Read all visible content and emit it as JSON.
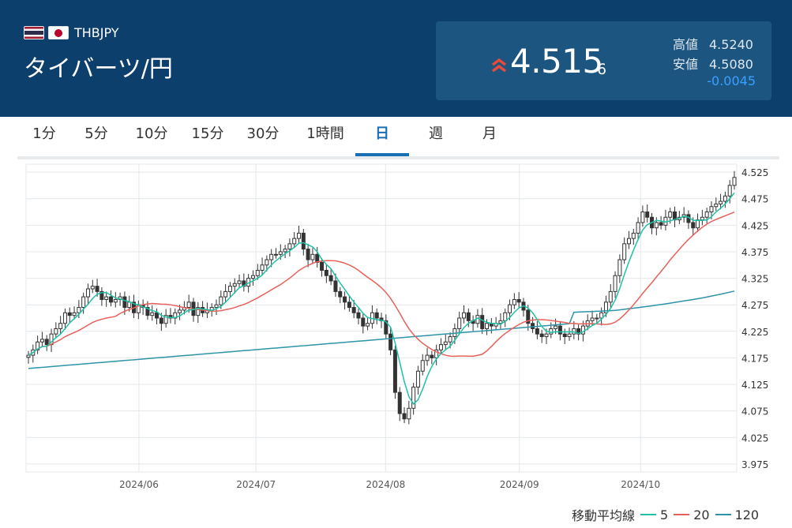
{
  "header": {
    "pair_code": "THBJPY",
    "pair_name": "タイバーツ/円",
    "price_main": "4.515",
    "price_sub": "6",
    "high_label": "高値",
    "high_value": "4.5240",
    "low_label": "安値",
    "low_value": "4.5080",
    "change": "-0.0045",
    "flags": [
      "thailand-flag",
      "japan-flag"
    ],
    "trend_icon": "double-chevron-up-icon"
  },
  "tabs": [
    {
      "label": "1分"
    },
    {
      "label": "5分"
    },
    {
      "label": "10分"
    },
    {
      "label": "15分"
    },
    {
      "label": "30分"
    },
    {
      "label": "1時間"
    },
    {
      "label": "日"
    },
    {
      "label": "週"
    },
    {
      "label": "月"
    }
  ],
  "active_tab": "日",
  "colors": {
    "header_bg": "#0d3f6d",
    "accent": "#1a6fb3",
    "up_arrow": "#e84b3c",
    "change_negative": "#3aa0ff",
    "ma5": "#1fc2a6",
    "ma20": "#e8605a",
    "ma120": "#2e93a8"
  },
  "legend": {
    "title": "移動平均線",
    "items": [
      {
        "label": "5",
        "color": "#1fc2a6"
      },
      {
        "label": "20",
        "color": "#e8605a"
      },
      {
        "label": "120",
        "color": "#2e93a8"
      }
    ]
  },
  "chart_data": {
    "type": "candlestick",
    "ylim": [
      3.96,
      4.54
    ],
    "yticks": [
      "4.525",
      "4.475",
      "4.425",
      "4.375",
      "4.325",
      "4.275",
      "4.225",
      "4.175",
      "4.125",
      "4.075",
      "4.025",
      "3.975"
    ],
    "xticks": [
      {
        "label": "2024/06",
        "date": "2024-06-03"
      },
      {
        "label": "2024/07",
        "date": "2024-07-01"
      },
      {
        "label": "2024/08",
        "date": "2024-08-01"
      },
      {
        "label": "2024/09",
        "date": "2024-09-02"
      },
      {
        "label": "2024/10",
        "date": "2024-10-01"
      }
    ],
    "grid": true,
    "start_date": "2024-05-07",
    "end_date": "2024-10-24",
    "closes": [
      4.18,
      4.19,
      4.205,
      4.21,
      4.2,
      4.22,
      4.23,
      4.24,
      4.26,
      4.255,
      4.26,
      4.27,
      4.29,
      4.305,
      4.31,
      4.3,
      4.285,
      4.29,
      4.28,
      4.285,
      4.29,
      4.27,
      4.28,
      4.26,
      4.275,
      4.27,
      4.255,
      4.26,
      4.25,
      4.24,
      4.255,
      4.25,
      4.26,
      4.265,
      4.27,
      4.28,
      4.255,
      4.27,
      4.26,
      4.265,
      4.27,
      4.275,
      4.29,
      4.3,
      4.31,
      4.315,
      4.32,
      4.31,
      4.325,
      4.33,
      4.34,
      4.35,
      4.36,
      4.37,
      4.37,
      4.375,
      4.38,
      4.39,
      4.4,
      4.41,
      4.38,
      4.36,
      4.37,
      4.355,
      4.34,
      4.33,
      4.32,
      4.3,
      4.29,
      4.28,
      4.27,
      4.26,
      4.25,
      4.235,
      4.24,
      4.26,
      4.25,
      4.245,
      4.22,
      4.19,
      4.11,
      4.07,
      4.06,
      4.08,
      4.12,
      4.15,
      4.17,
      4.18,
      4.175,
      4.19,
      4.2,
      4.205,
      4.215,
      4.23,
      4.25,
      4.26,
      4.245,
      4.24,
      4.255,
      4.23,
      4.24,
      4.235,
      4.24,
      4.245,
      4.26,
      4.275,
      4.285,
      4.28,
      4.265,
      4.24,
      4.23,
      4.22,
      4.215,
      4.22,
      4.23,
      4.235,
      4.22,
      4.215,
      4.22,
      4.23,
      4.22,
      4.235,
      4.245,
      4.25,
      4.25,
      4.26,
      4.28,
      4.3,
      4.33,
      4.36,
      4.39,
      4.4,
      4.41,
      4.43,
      4.45,
      4.44,
      4.42,
      4.43,
      4.425,
      4.44,
      4.45,
      4.435,
      4.44,
      4.445,
      4.43,
      4.42,
      4.435,
      4.44,
      4.45,
      4.46,
      4.465,
      4.47,
      4.48,
      4.5,
      4.515
    ]
  }
}
